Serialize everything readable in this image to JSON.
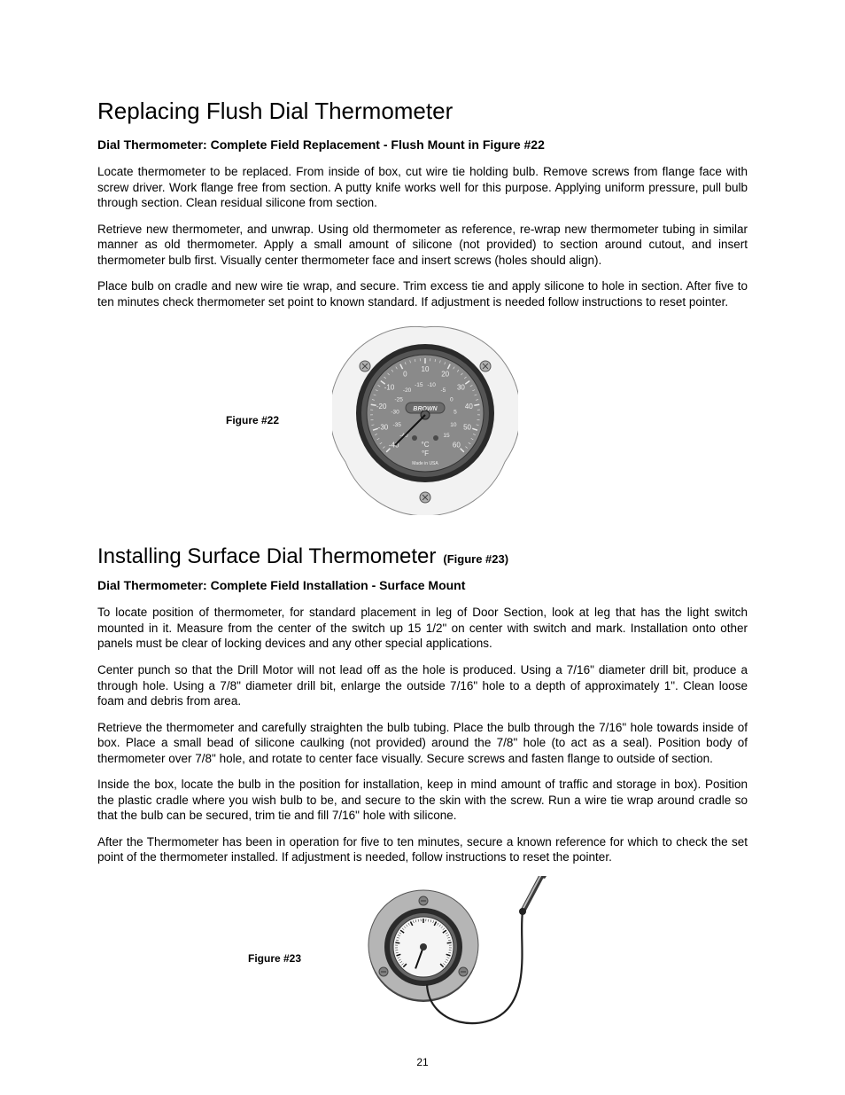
{
  "page_number": "21",
  "section1": {
    "heading": "Replacing Flush Dial Thermometer",
    "subheading": "Dial Thermometer: Complete Field Replacement - Flush Mount in Figure #22",
    "p1": "Locate thermometer to be replaced. From inside of box, cut wire tie holding bulb. Remove screws from flange face with screw driver. Work flange free from section. A putty knife works well for this purpose. Applying uniform pressure, pull bulb through section. Clean residual silicone from section.",
    "p2": "Retrieve new thermometer, and unwrap. Using old thermometer as reference, re-wrap new thermometer tubing in similar manner as old thermometer. Apply a small amount of silicone (not provided) to section around cutout, and insert thermometer bulb first. Visually center thermometer face and insert screws (holes should align).",
    "p3": "Place bulb on cradle and new wire tie wrap, and secure. Trim excess tie and apply silicone to hole in section. After five to ten minutes check thermometer set point to known standard. If adjustment is needed follow instructions to reset pointer.",
    "figure_label": "Figure #22"
  },
  "section2": {
    "heading": "Installing Surface Dial Thermometer",
    "heading_note": "(Figure #23)",
    "subheading": "Dial Thermometer: Complete Field Installation - Surface Mount",
    "p1": "To locate position of thermometer, for standard placement in leg of Door Section, look at leg that has the light switch mounted in it. Measure from the center of the switch up 15 1/2\" on center with switch and mark. Installation onto other panels must be clear of locking devices and any other special applications.",
    "p2": "Center punch so that the Drill Motor will not lead off as the hole is produced. Using a 7/16\" diameter drill bit, produce a through hole. Using a 7/8\" diameter drill bit, enlarge the outside 7/16\" hole to a depth of approximately 1\". Clean loose foam and debris from area.",
    "p3": "Retrieve the thermometer and carefully straighten the bulb tubing. Place the bulb through the 7/16\" hole towards inside of box. Place a small bead of silicone caulking (not provided) around the 7/8\" hole (to act as a seal). Position body of thermometer over 7/8\" hole, and rotate to center face visually. Secure screws and fasten flange to outside of section.",
    "p4": "Inside the box, locate the bulb in the position for installation, keep in mind amount of traffic and storage in box). Position the plastic cradle where you wish bulb to be, and secure to the skin with the screw. Run a wire tie wrap around cradle so that the bulb can be secured, trim tie and fill 7/16\" hole with silicone.",
    "p5": "After the Thermometer has been in operation for five to ten minutes, secure a known reference for which to check the set point of the thermometer installed. If adjustment is needed, follow instructions to reset the pointer.",
    "figure_label": "Figure #23"
  },
  "figure22": {
    "type": "diagram",
    "outer_flange_color": "#f2f2f2",
    "outer_ring_color": "#d8d8d8",
    "bezel_outer": "#2a2a2a",
    "bezel_inner": "#555555",
    "face_color": "#8a8a8a",
    "center_color": "#5a5a5a",
    "tick_color": "#e8e8e8",
    "screw_color": "#b0b0b0",
    "text_color": "#eeeeee",
    "brand": "BROWN",
    "unit_c": "°C",
    "unit_f": "°F",
    "bottom_text": "Made in USA",
    "outer_labels": [
      "-40",
      "-30",
      "-20",
      "-10",
      "0",
      "10",
      "20",
      "30",
      "40",
      "50",
      "60"
    ],
    "inner_labels": [
      "-40",
      "-35",
      "-30",
      "-25",
      "-20",
      "-15",
      "-10",
      "-5",
      "0",
      "5",
      "10",
      "15"
    ],
    "needle_angle_deg": 225
  },
  "figure23": {
    "type": "diagram",
    "flange_color": "#b5b5b5",
    "flange_shadow": "#3a3a3a",
    "bezel_color": "#2a2a2a",
    "face_color": "#f5f5f5",
    "tick_color": "#111111",
    "screw_color": "#808080",
    "tube_color": "#202020",
    "bulb_body_color": "#3a3a3a",
    "bulb_highlight": "#bababa",
    "needle_angle_deg": 250
  }
}
